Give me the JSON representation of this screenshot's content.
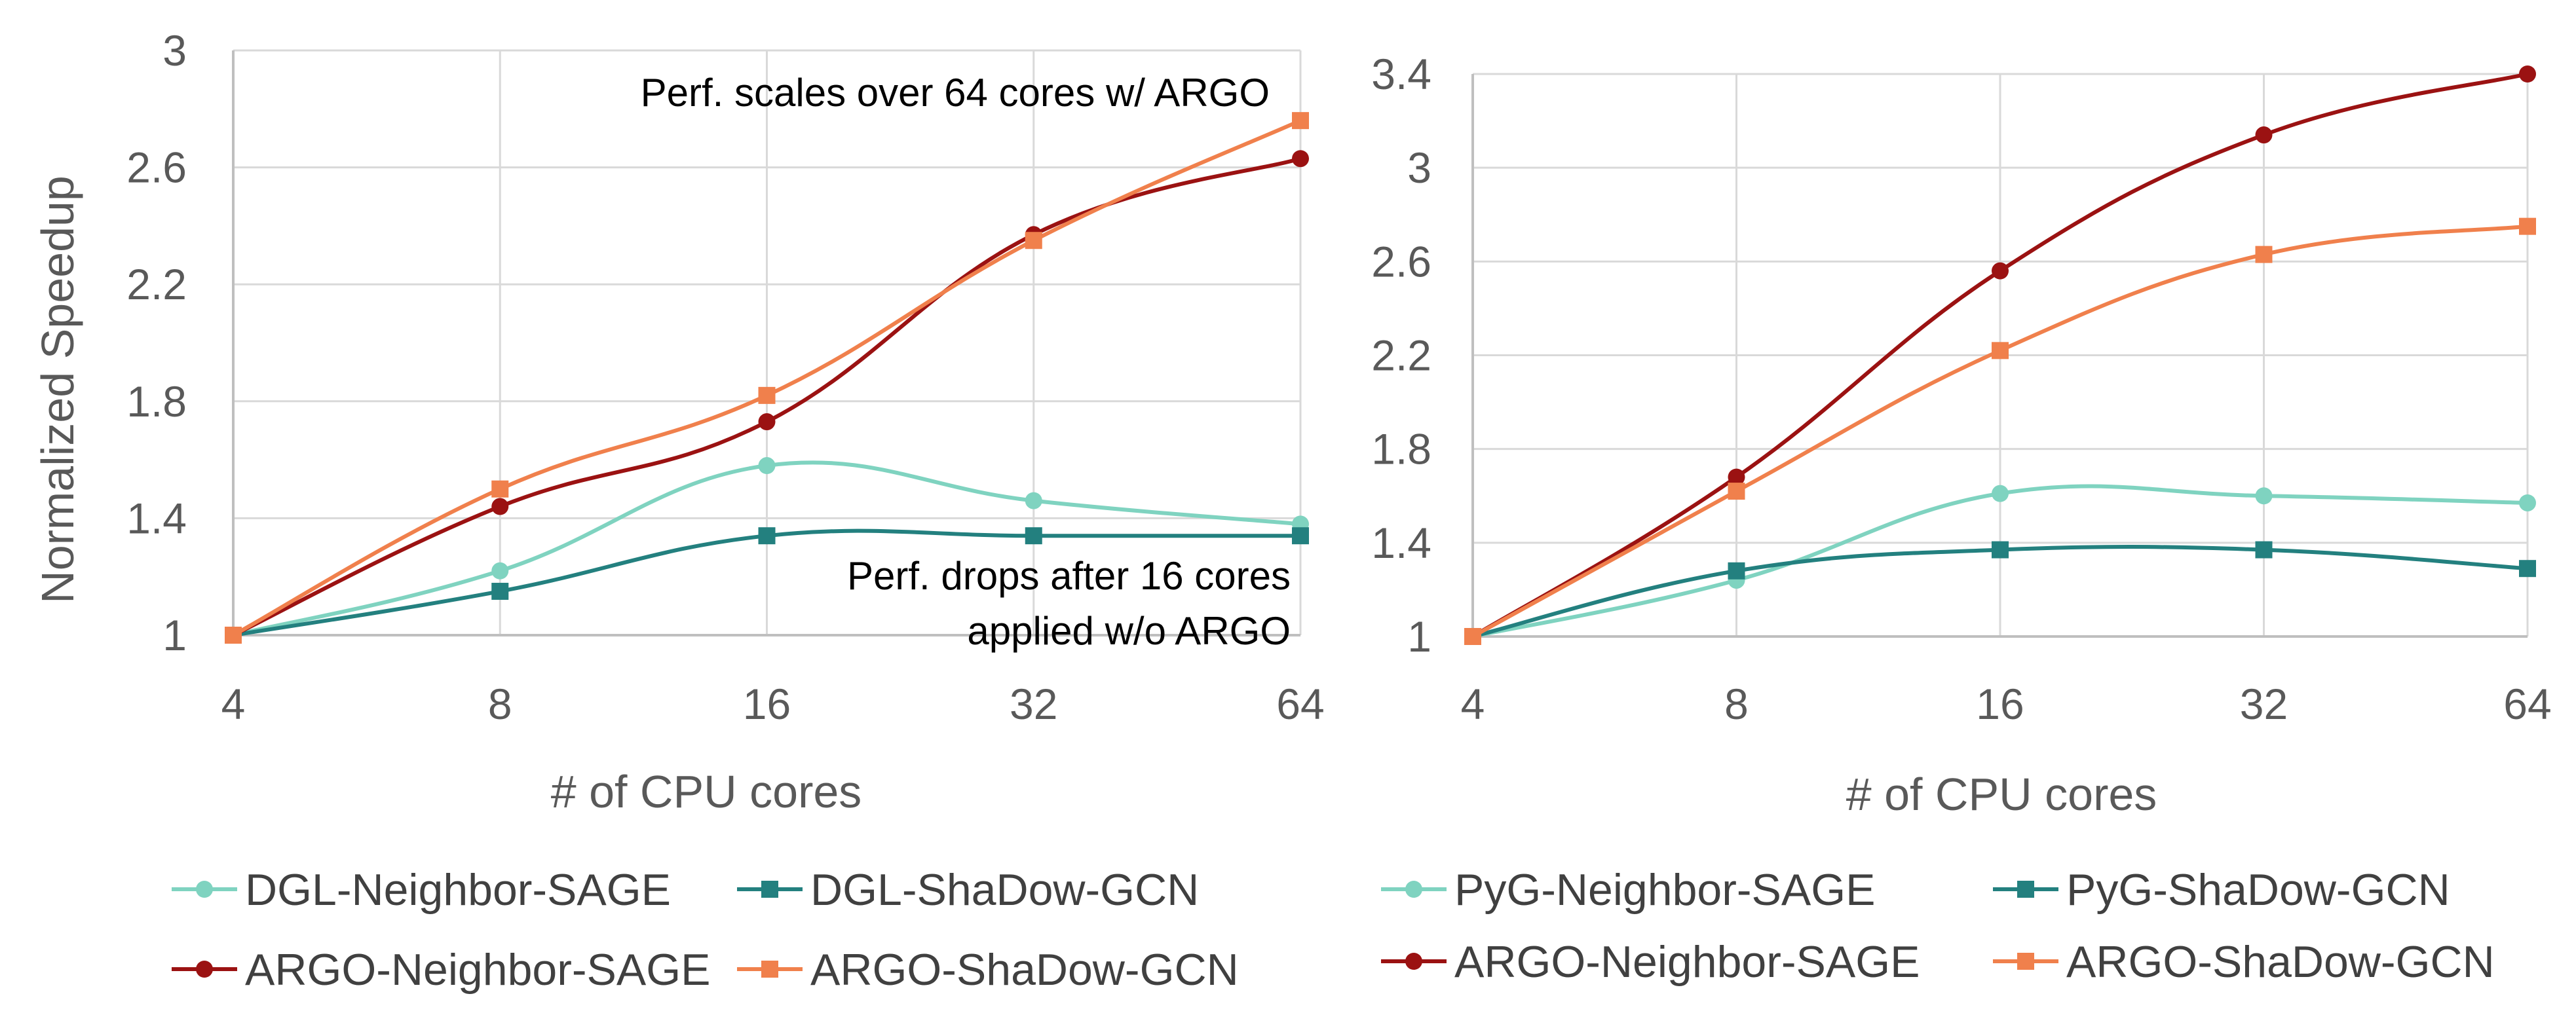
{
  "colors": {
    "neighbor_sage_baseline": "#7fd3c0",
    "shadow_gcn_baseline": "#23807f",
    "argo_neighbor_sage": "#9b1212",
    "argo_shadow_gcn": "#f0804c",
    "grid": "#d9d9d9",
    "text": "#595959"
  },
  "chart_data": [
    {
      "type": "line",
      "smooth": true,
      "categories": [
        "4",
        "8",
        "16",
        "32",
        "64"
      ],
      "ylabel": "Normalized Speedup",
      "xlabel": "# of CPU cores",
      "ylim": [
        1,
        3
      ],
      "yticks": [
        "1",
        "1.4",
        "1.8",
        "2.2",
        "2.6",
        "3"
      ],
      "grid": true,
      "legend_position": "bottom",
      "annotations": [
        "Perf. scales over 64 cores w/ ARGO",
        "Perf. drops after 16 cores",
        "applied w/o ARGO"
      ],
      "series": [
        {
          "name": "DGL-Neighbor-SAGE",
          "marker": "circle",
          "color": "#7fd3c0",
          "values": [
            1.0,
            1.22,
            1.58,
            1.46,
            1.38
          ]
        },
        {
          "name": "DGL-ShaDow-GCN",
          "marker": "square",
          "color": "#23807f",
          "values": [
            1.0,
            1.15,
            1.34,
            1.34,
            1.34
          ]
        },
        {
          "name": "ARGO-Neighbor-SAGE",
          "marker": "circle",
          "color": "#9b1212",
          "values": [
            1.0,
            1.44,
            1.73,
            2.37,
            2.63
          ]
        },
        {
          "name": "ARGO-ShaDow-GCN",
          "marker": "square",
          "color": "#f0804c",
          "values": [
            1.0,
            1.5,
            1.82,
            2.35,
            2.76
          ]
        }
      ]
    },
    {
      "type": "line",
      "smooth": true,
      "categories": [
        "4",
        "8",
        "16",
        "32",
        "64"
      ],
      "ylabel": "",
      "xlabel": "# of CPU cores",
      "ylim": [
        1,
        3.4
      ],
      "yticks": [
        "1",
        "1.4",
        "1.8",
        "2.2",
        "2.6",
        "3",
        "3.4"
      ],
      "grid": true,
      "legend_position": "bottom",
      "annotations": [],
      "series": [
        {
          "name": "PyG-Neighbor-SAGE",
          "marker": "circle",
          "color": "#7fd3c0",
          "values": [
            1.0,
            1.24,
            1.61,
            1.6,
            1.57
          ]
        },
        {
          "name": "PyG-ShaDow-GCN",
          "marker": "square",
          "color": "#23807f",
          "values": [
            1.0,
            1.28,
            1.37,
            1.37,
            1.29
          ]
        },
        {
          "name": "ARGO-Neighbor-SAGE",
          "marker": "circle",
          "color": "#9b1212",
          "values": [
            1.0,
            1.68,
            2.56,
            3.14,
            3.4
          ]
        },
        {
          "name": "ARGO-ShaDow-GCN",
          "marker": "square",
          "color": "#f0804c",
          "values": [
            1.0,
            1.62,
            2.22,
            2.63,
            2.75
          ]
        }
      ]
    }
  ]
}
